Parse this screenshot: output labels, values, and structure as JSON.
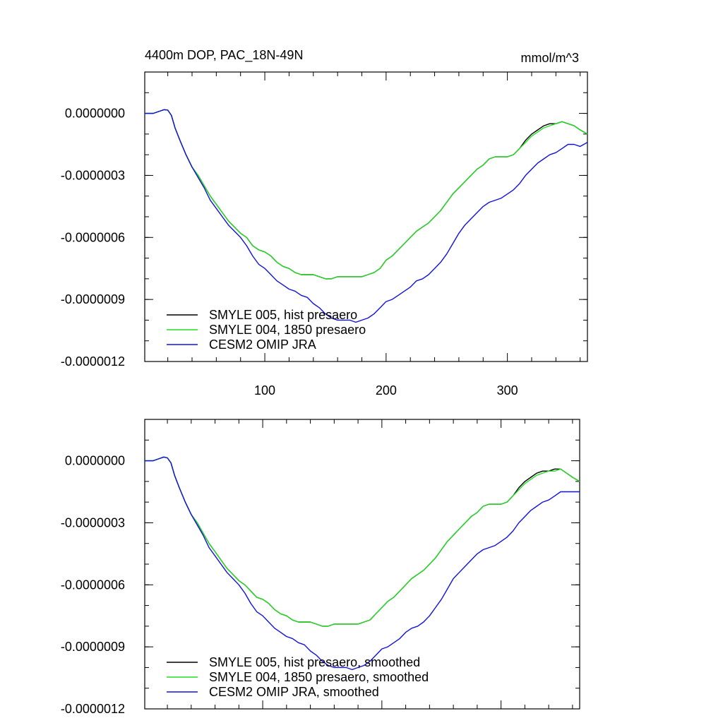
{
  "chart_data": [
    {
      "type": "line",
      "title": "4400m DOP, PAC_18N-49N",
      "units": "mmol/m^3",
      "xlim": [
        1,
        366
      ],
      "ylim": [
        -1.2e-06,
        2e-07
      ],
      "xticks": [
        100,
        200,
        300
      ],
      "xtick_labels": [
        "100",
        "200",
        "300"
      ],
      "yticks": [
        0,
        -3e-07,
        -6e-07,
        -9e-07,
        -1.2e-06
      ],
      "ytick_labels": [
        "0.0000000",
        "-0.0000003",
        "-0.0000006",
        "-0.0000009",
        "-0.0000012"
      ],
      "legend_position": "bottom-left",
      "x": [
        1,
        8,
        13,
        17,
        20,
        23,
        26,
        30,
        35,
        40,
        45,
        50,
        55,
        60,
        65,
        70,
        75,
        80,
        85,
        90,
        95,
        100,
        105,
        110,
        115,
        120,
        125,
        130,
        135,
        140,
        145,
        150,
        155,
        160,
        165,
        170,
        175,
        180,
        185,
        190,
        195,
        200,
        205,
        210,
        215,
        220,
        225,
        230,
        235,
        240,
        245,
        250,
        255,
        260,
        265,
        270,
        275,
        280,
        285,
        290,
        295,
        300,
        305,
        310,
        315,
        320,
        325,
        330,
        335,
        340,
        345,
        350,
        355,
        360,
        366
      ],
      "series": [
        {
          "name": "SMYLE 005, hist presaero",
          "color": "#000000",
          "values": [
            0,
            0,
            1e-08,
            1.8e-08,
            1.6e-08,
            -1e-08,
            -7e-08,
            -1.3e-07,
            -2e-07,
            -2.6e-07,
            -3e-07,
            -3.5e-07,
            -4e-07,
            -4.4e-07,
            -4.8e-07,
            -5.2e-07,
            -5.5e-07,
            -5.8e-07,
            -6e-07,
            -6.4e-07,
            -6.6e-07,
            -6.7e-07,
            -6.9e-07,
            -7.2e-07,
            -7.4e-07,
            -7.5e-07,
            -7.7e-07,
            -7.8e-07,
            -7.8e-07,
            -7.8e-07,
            -7.9e-07,
            -8e-07,
            -8e-07,
            -7.9e-07,
            -7.9e-07,
            -7.9e-07,
            -7.9e-07,
            -7.9e-07,
            -7.8e-07,
            -7.7e-07,
            -7.5e-07,
            -7.1e-07,
            -6.9e-07,
            -6.6e-07,
            -6.3e-07,
            -6e-07,
            -5.7e-07,
            -5.5e-07,
            -5.3e-07,
            -5e-07,
            -4.7e-07,
            -4.3e-07,
            -3.9e-07,
            -3.6e-07,
            -3.3e-07,
            -3e-07,
            -2.7e-07,
            -2.5e-07,
            -2.2e-07,
            -2.1e-07,
            -2.1e-07,
            -2.1e-07,
            -2e-07,
            -1.7e-07,
            -1.3e-07,
            -1e-07,
            -8e-08,
            -6e-08,
            -5e-08,
            -5e-08,
            -4e-08,
            -5e-08,
            -6e-08,
            -8e-08,
            -1e-07
          ]
        },
        {
          "name": "SMYLE 004, 1850 presaero",
          "color": "#22dd22",
          "values": [
            0,
            0,
            1e-08,
            1.8e-08,
            1.6e-08,
            -1e-08,
            -7e-08,
            -1.3e-07,
            -2e-07,
            -2.6e-07,
            -3e-07,
            -3.5e-07,
            -4e-07,
            -4.4e-07,
            -4.8e-07,
            -5.2e-07,
            -5.5e-07,
            -5.8e-07,
            -6e-07,
            -6.4e-07,
            -6.6e-07,
            -6.7e-07,
            -6.9e-07,
            -7.2e-07,
            -7.4e-07,
            -7.5e-07,
            -7.7e-07,
            -7.8e-07,
            -7.8e-07,
            -7.8e-07,
            -7.9e-07,
            -8e-07,
            -8e-07,
            -7.9e-07,
            -7.9e-07,
            -7.9e-07,
            -7.9e-07,
            -7.9e-07,
            -7.8e-07,
            -7.7e-07,
            -7.5e-07,
            -7.1e-07,
            -6.9e-07,
            -6.6e-07,
            -6.3e-07,
            -6e-07,
            -5.7e-07,
            -5.5e-07,
            -5.3e-07,
            -5e-07,
            -4.7e-07,
            -4.3e-07,
            -3.9e-07,
            -3.6e-07,
            -3.3e-07,
            -3e-07,
            -2.7e-07,
            -2.5e-07,
            -2.2e-07,
            -2.1e-07,
            -2.1e-07,
            -2.1e-07,
            -2e-07,
            -1.7e-07,
            -1.4e-07,
            -1.1e-07,
            -9e-08,
            -7e-08,
            -6e-08,
            -5e-08,
            -4e-08,
            -5e-08,
            -6e-08,
            -8e-08,
            -1e-07
          ]
        },
        {
          "name": "CESM2 OMIP JRA",
          "color": "#1111dd",
          "values": [
            0,
            0,
            1e-08,
            1.8e-08,
            1.6e-08,
            -1e-08,
            -7e-08,
            -1.3e-07,
            -2e-07,
            -2.6e-07,
            -3.1e-07,
            -3.6e-07,
            -4.2e-07,
            -4.6e-07,
            -5e-07,
            -5.4e-07,
            -5.7e-07,
            -6e-07,
            -6.4e-07,
            -6.9e-07,
            -7.3e-07,
            -7.5e-07,
            -7.8e-07,
            -8.1e-07,
            -8.3e-07,
            -8.5e-07,
            -8.6e-07,
            -8.8e-07,
            -8.9e-07,
            -9.2e-07,
            -9.4e-07,
            -9.7e-07,
            -9.9e-07,
            -1e-06,
            -1e-06,
            -1e-06,
            -1.01e-06,
            -1e-06,
            -9.9e-07,
            -9.7e-07,
            -9.4e-07,
            -9.1e-07,
            -9e-07,
            -8.8e-07,
            -8.6e-07,
            -8.4e-07,
            -8.1e-07,
            -8e-07,
            -7.8e-07,
            -7.5e-07,
            -7.2e-07,
            -6.8e-07,
            -6.3e-07,
            -5.8e-07,
            -5.4e-07,
            -5.1e-07,
            -4.8e-07,
            -4.5e-07,
            -4.3e-07,
            -4.2e-07,
            -4.1e-07,
            -3.9e-07,
            -3.7e-07,
            -3.4e-07,
            -3e-07,
            -2.7e-07,
            -2.4e-07,
            -2.2e-07,
            -2e-07,
            -1.9e-07,
            -1.7e-07,
            -1.5e-07,
            -1.5e-07,
            -1.6e-07,
            -1.4e-07
          ]
        }
      ]
    },
    {
      "type": "line",
      "title": "",
      "units": "",
      "xlim": [
        1,
        366
      ],
      "ylim": [
        -1.2e-06,
        2e-07
      ],
      "xticks": [
        100,
        200,
        300
      ],
      "xtick_labels": [
        "",
        "",
        ""
      ],
      "yticks": [
        0,
        -3e-07,
        -6e-07,
        -9e-07,
        -1.2e-06
      ],
      "ytick_labels": [
        "0.0000000",
        "-0.0000003",
        "-0.0000006",
        "-0.0000009",
        "-0.0000012"
      ],
      "legend_position": "bottom-left",
      "x": [
        1,
        8,
        13,
        17,
        20,
        23,
        26,
        30,
        35,
        40,
        45,
        50,
        55,
        60,
        65,
        70,
        75,
        80,
        85,
        90,
        95,
        100,
        105,
        110,
        115,
        120,
        125,
        130,
        135,
        140,
        145,
        150,
        155,
        160,
        165,
        170,
        175,
        180,
        185,
        190,
        195,
        200,
        205,
        210,
        215,
        220,
        225,
        230,
        235,
        240,
        245,
        250,
        255,
        260,
        265,
        270,
        275,
        280,
        285,
        290,
        295,
        300,
        305,
        310,
        315,
        320,
        325,
        330,
        335,
        340,
        345,
        350,
        355,
        360,
        366
      ],
      "series": [
        {
          "name": "SMYLE 005, hist presaero, smoothed",
          "color": "#000000",
          "values": [
            0,
            0,
            1e-08,
            1.8e-08,
            1.4e-08,
            -1e-08,
            -7e-08,
            -1.3e-07,
            -2e-07,
            -2.6e-07,
            -3e-07,
            -3.5e-07,
            -4e-07,
            -4.4e-07,
            -4.8e-07,
            -5.2e-07,
            -5.5e-07,
            -5.8e-07,
            -6e-07,
            -6.3e-07,
            -6.6e-07,
            -6.7e-07,
            -6.9e-07,
            -7.2e-07,
            -7.4e-07,
            -7.5e-07,
            -7.7e-07,
            -7.8e-07,
            -7.8e-07,
            -7.8e-07,
            -7.9e-07,
            -8e-07,
            -8e-07,
            -7.9e-07,
            -7.9e-07,
            -7.9e-07,
            -7.9e-07,
            -7.9e-07,
            -7.8e-07,
            -7.7e-07,
            -7.4e-07,
            -7.1e-07,
            -6.8e-07,
            -6.6e-07,
            -6.3e-07,
            -6e-07,
            -5.7e-07,
            -5.5e-07,
            -5.3e-07,
            -5e-07,
            -4.7e-07,
            -4.3e-07,
            -3.9e-07,
            -3.6e-07,
            -3.3e-07,
            -3e-07,
            -2.7e-07,
            -2.5e-07,
            -2.2e-07,
            -2.1e-07,
            -2.1e-07,
            -2.1e-07,
            -2e-07,
            -1.7e-07,
            -1.3e-07,
            -1e-07,
            -8e-08,
            -6e-08,
            -5e-08,
            -5e-08,
            -4e-08,
            -4e-08,
            -6e-08,
            -8e-08,
            -1e-07
          ]
        },
        {
          "name": "SMYLE 004, 1850 presaero, smoothed",
          "color": "#22dd22",
          "values": [
            0,
            0,
            1e-08,
            1.8e-08,
            1.4e-08,
            -1e-08,
            -7e-08,
            -1.3e-07,
            -2e-07,
            -2.6e-07,
            -3e-07,
            -3.5e-07,
            -4e-07,
            -4.4e-07,
            -4.8e-07,
            -5.2e-07,
            -5.5e-07,
            -5.8e-07,
            -6e-07,
            -6.3e-07,
            -6.6e-07,
            -6.7e-07,
            -6.9e-07,
            -7.2e-07,
            -7.4e-07,
            -7.5e-07,
            -7.7e-07,
            -7.8e-07,
            -7.8e-07,
            -7.8e-07,
            -7.9e-07,
            -8e-07,
            -8e-07,
            -7.9e-07,
            -7.9e-07,
            -7.9e-07,
            -7.9e-07,
            -7.9e-07,
            -7.8e-07,
            -7.7e-07,
            -7.4e-07,
            -7.1e-07,
            -6.8e-07,
            -6.6e-07,
            -6.3e-07,
            -6e-07,
            -5.7e-07,
            -5.5e-07,
            -5.3e-07,
            -5e-07,
            -4.7e-07,
            -4.3e-07,
            -3.9e-07,
            -3.6e-07,
            -3.3e-07,
            -3e-07,
            -2.7e-07,
            -2.5e-07,
            -2.2e-07,
            -2.1e-07,
            -2.1e-07,
            -2.1e-07,
            -2e-07,
            -1.7e-07,
            -1.4e-07,
            -1.1e-07,
            -9e-08,
            -7e-08,
            -6e-08,
            -5e-08,
            -5e-08,
            -4e-08,
            -6e-08,
            -8e-08,
            -1e-07
          ]
        },
        {
          "name": "CESM2 OMIP JRA, smoothed",
          "color": "#1111dd",
          "values": [
            0,
            0,
            1e-08,
            1.8e-08,
            1.4e-08,
            -1e-08,
            -7e-08,
            -1.3e-07,
            -2e-07,
            -2.6e-07,
            -3.1e-07,
            -3.6e-07,
            -4.2e-07,
            -4.6e-07,
            -5e-07,
            -5.4e-07,
            -5.7e-07,
            -6e-07,
            -6.4e-07,
            -6.9e-07,
            -7.3e-07,
            -7.5e-07,
            -7.8e-07,
            -8.1e-07,
            -8.3e-07,
            -8.5e-07,
            -8.6e-07,
            -8.8e-07,
            -8.9e-07,
            -9.2e-07,
            -9.4e-07,
            -9.7e-07,
            -9.9e-07,
            -1e-06,
            -1e-06,
            -1e-06,
            -1.01e-06,
            -1e-06,
            -9.9e-07,
            -9.7e-07,
            -9.4e-07,
            -9.1e-07,
            -9e-07,
            -8.8e-07,
            -8.6e-07,
            -8.3e-07,
            -8.1e-07,
            -8e-07,
            -7.8e-07,
            -7.5e-07,
            -7.1e-07,
            -6.7e-07,
            -6.2e-07,
            -5.7e-07,
            -5.4e-07,
            -5.1e-07,
            -4.8e-07,
            -4.5e-07,
            -4.3e-07,
            -4.2e-07,
            -4.1e-07,
            -3.9e-07,
            -3.7e-07,
            -3.4e-07,
            -3e-07,
            -2.7e-07,
            -2.4e-07,
            -2.2e-07,
            -2e-07,
            -1.9e-07,
            -1.7e-07,
            -1.5e-07,
            -1.5e-07,
            -1.5e-07,
            -1.5e-07
          ]
        }
      ]
    }
  ]
}
